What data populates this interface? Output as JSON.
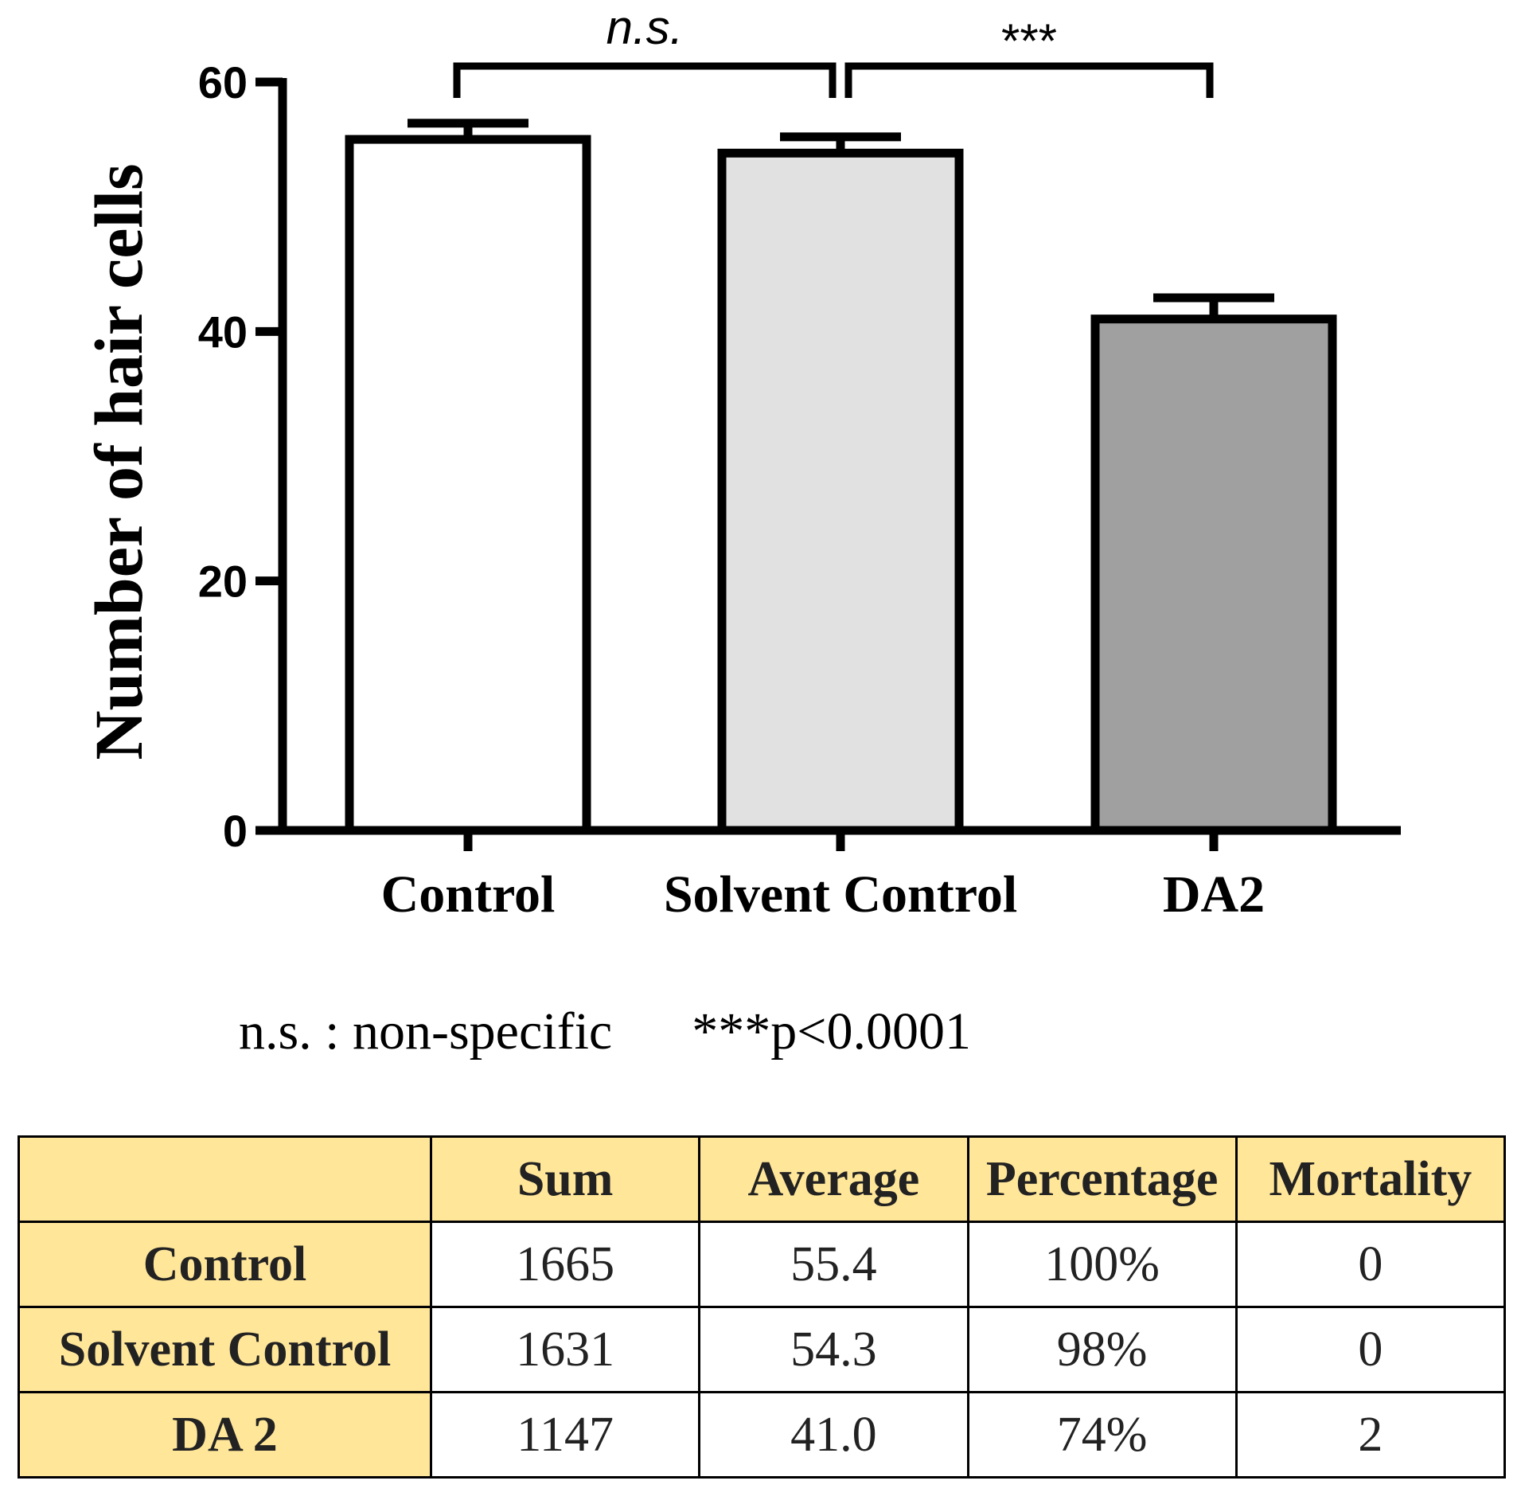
{
  "chart_data": {
    "type": "bar",
    "title": "",
    "xlabel": "",
    "ylabel": "Number of hair cells",
    "ylim": [
      0,
      60
    ],
    "yticks": [
      0,
      20,
      40,
      60
    ],
    "categories": [
      "Control",
      "Solvent Control",
      "DA2"
    ],
    "values": [
      55.4,
      54.3,
      41.0
    ],
    "error": [
      1.3,
      1.3,
      1.7
    ],
    "bar_colors": [
      "#ffffff",
      "#e1e1e1",
      "#a0a0a0"
    ],
    "annotations": [
      {
        "from": 0,
        "to": 1,
        "label": "n.s."
      },
      {
        "from": 1,
        "to": 2,
        "label": "***"
      }
    ]
  },
  "legend": {
    "ns_note": "n.s. : non-specific",
    "p_note": "***p<0.0001"
  },
  "table": {
    "columns": [
      "",
      "Sum",
      "Average",
      "Percentage",
      "Mortality"
    ],
    "rows": [
      {
        "label": "Control",
        "sum": "1665",
        "average": "55.4",
        "percentage": "100%",
        "mortality": "0"
      },
      {
        "label": "Solvent Control",
        "sum": "1631",
        "average": "54.3",
        "percentage": "98%",
        "mortality": "0"
      },
      {
        "label": "DA 2",
        "sum": "1147",
        "average": "41.0",
        "percentage": "74%",
        "mortality": "2"
      }
    ]
  },
  "colors": {
    "header_bg": "#ffe699",
    "axis": "#000000"
  }
}
